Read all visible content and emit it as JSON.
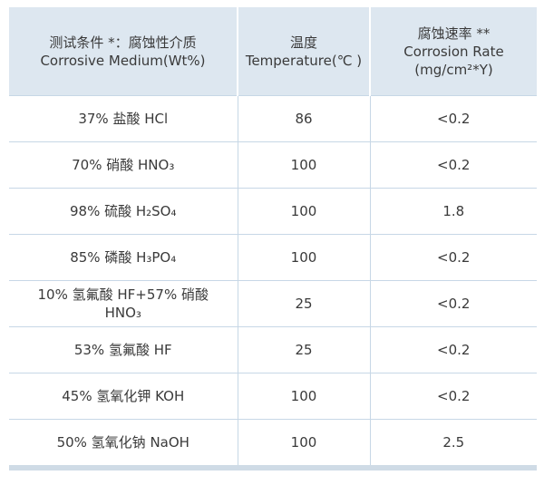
{
  "table": {
    "header": [
      [
        "测试条件 *：腐蚀性介质",
        "Corrosive Medium(Wt%)"
      ],
      [
        "温度",
        "Temperature(℃ )"
      ],
      [
        "腐蚀速率 **",
        "Corrosion Rate",
        "(mg/cm²*Y)"
      ]
    ],
    "rows": [
      [
        "37% 盐酸 HCl",
        "86",
        "<0.2"
      ],
      [
        "70% 硝酸 HNO₃",
        "100",
        "<0.2"
      ],
      [
        "98% 硫酸 H₂SO₄",
        "100",
        "1.8"
      ],
      [
        "85% 磷酸 H₃PO₄",
        "100",
        "<0.2"
      ],
      [
        "10% 氢氟酸 HF+57% 硝酸 HNO₃",
        "25",
        "<0.2"
      ],
      [
        "53% 氢氟酸 HF",
        "25",
        "<0.2"
      ],
      [
        "45% 氢氧化钾 KOH",
        "100",
        "<0.2"
      ],
      [
        "50% 氢氧化钠 NaOH",
        "100",
        "2.5"
      ]
    ]
  }
}
